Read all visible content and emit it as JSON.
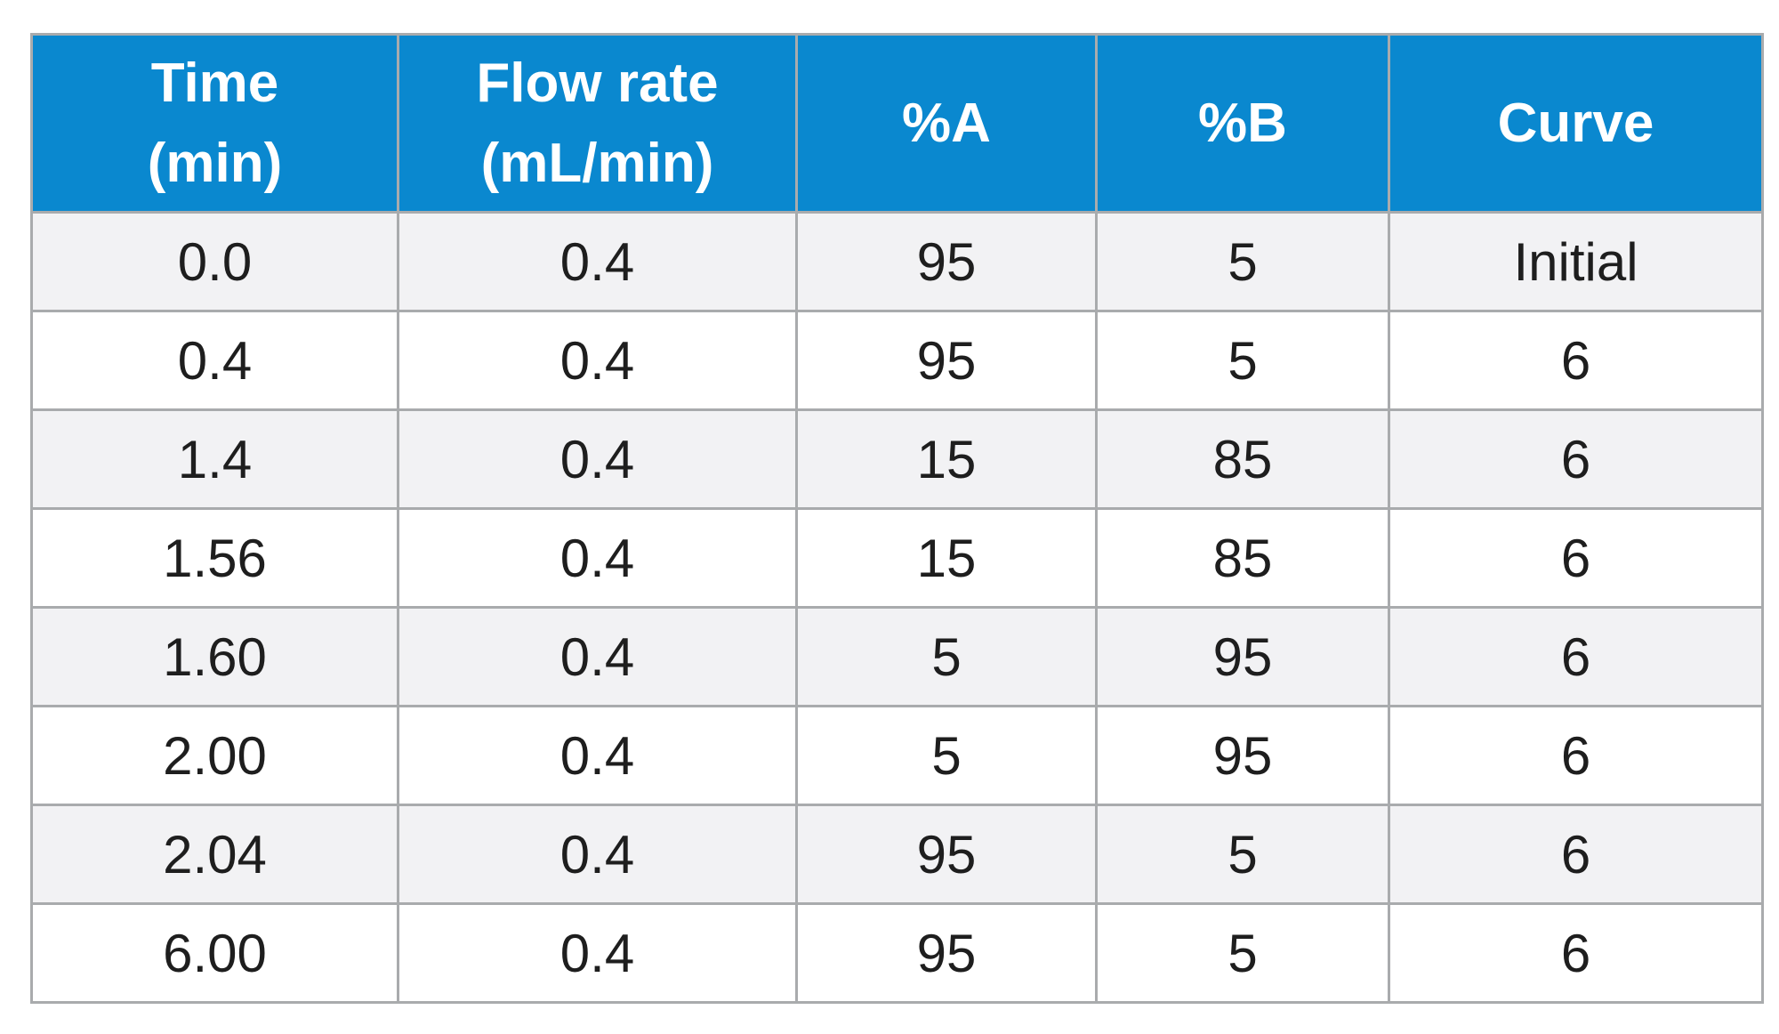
{
  "headers": [
    {
      "line1": "Time",
      "line2": "(min)"
    },
    {
      "line1": "Flow rate",
      "line2": "(mL/min)"
    },
    {
      "line1": "%A",
      "line2": ""
    },
    {
      "line1": "%B",
      "line2": ""
    },
    {
      "line1": "Curve",
      "line2": ""
    }
  ],
  "rows": [
    [
      "0.0",
      "0.4",
      "95",
      "5",
      "Initial"
    ],
    [
      "0.4",
      "0.4",
      "95",
      "5",
      "6"
    ],
    [
      "1.4",
      "0.4",
      "15",
      "85",
      "6"
    ],
    [
      "1.56",
      "0.4",
      "15",
      "85",
      "6"
    ],
    [
      "1.60",
      "0.4",
      "5",
      "95",
      "6"
    ],
    [
      "2.00",
      "0.4",
      "5",
      "95",
      "6"
    ],
    [
      "2.04",
      "0.4",
      "95",
      "5",
      "6"
    ],
    [
      "6.00",
      "0.4",
      "95",
      "5",
      "6"
    ]
  ],
  "colors": {
    "header_bg": "#0a88cf",
    "header_text": "#ffffff",
    "row_alt_bg": "#f2f2f4",
    "border": "#a9abad"
  }
}
